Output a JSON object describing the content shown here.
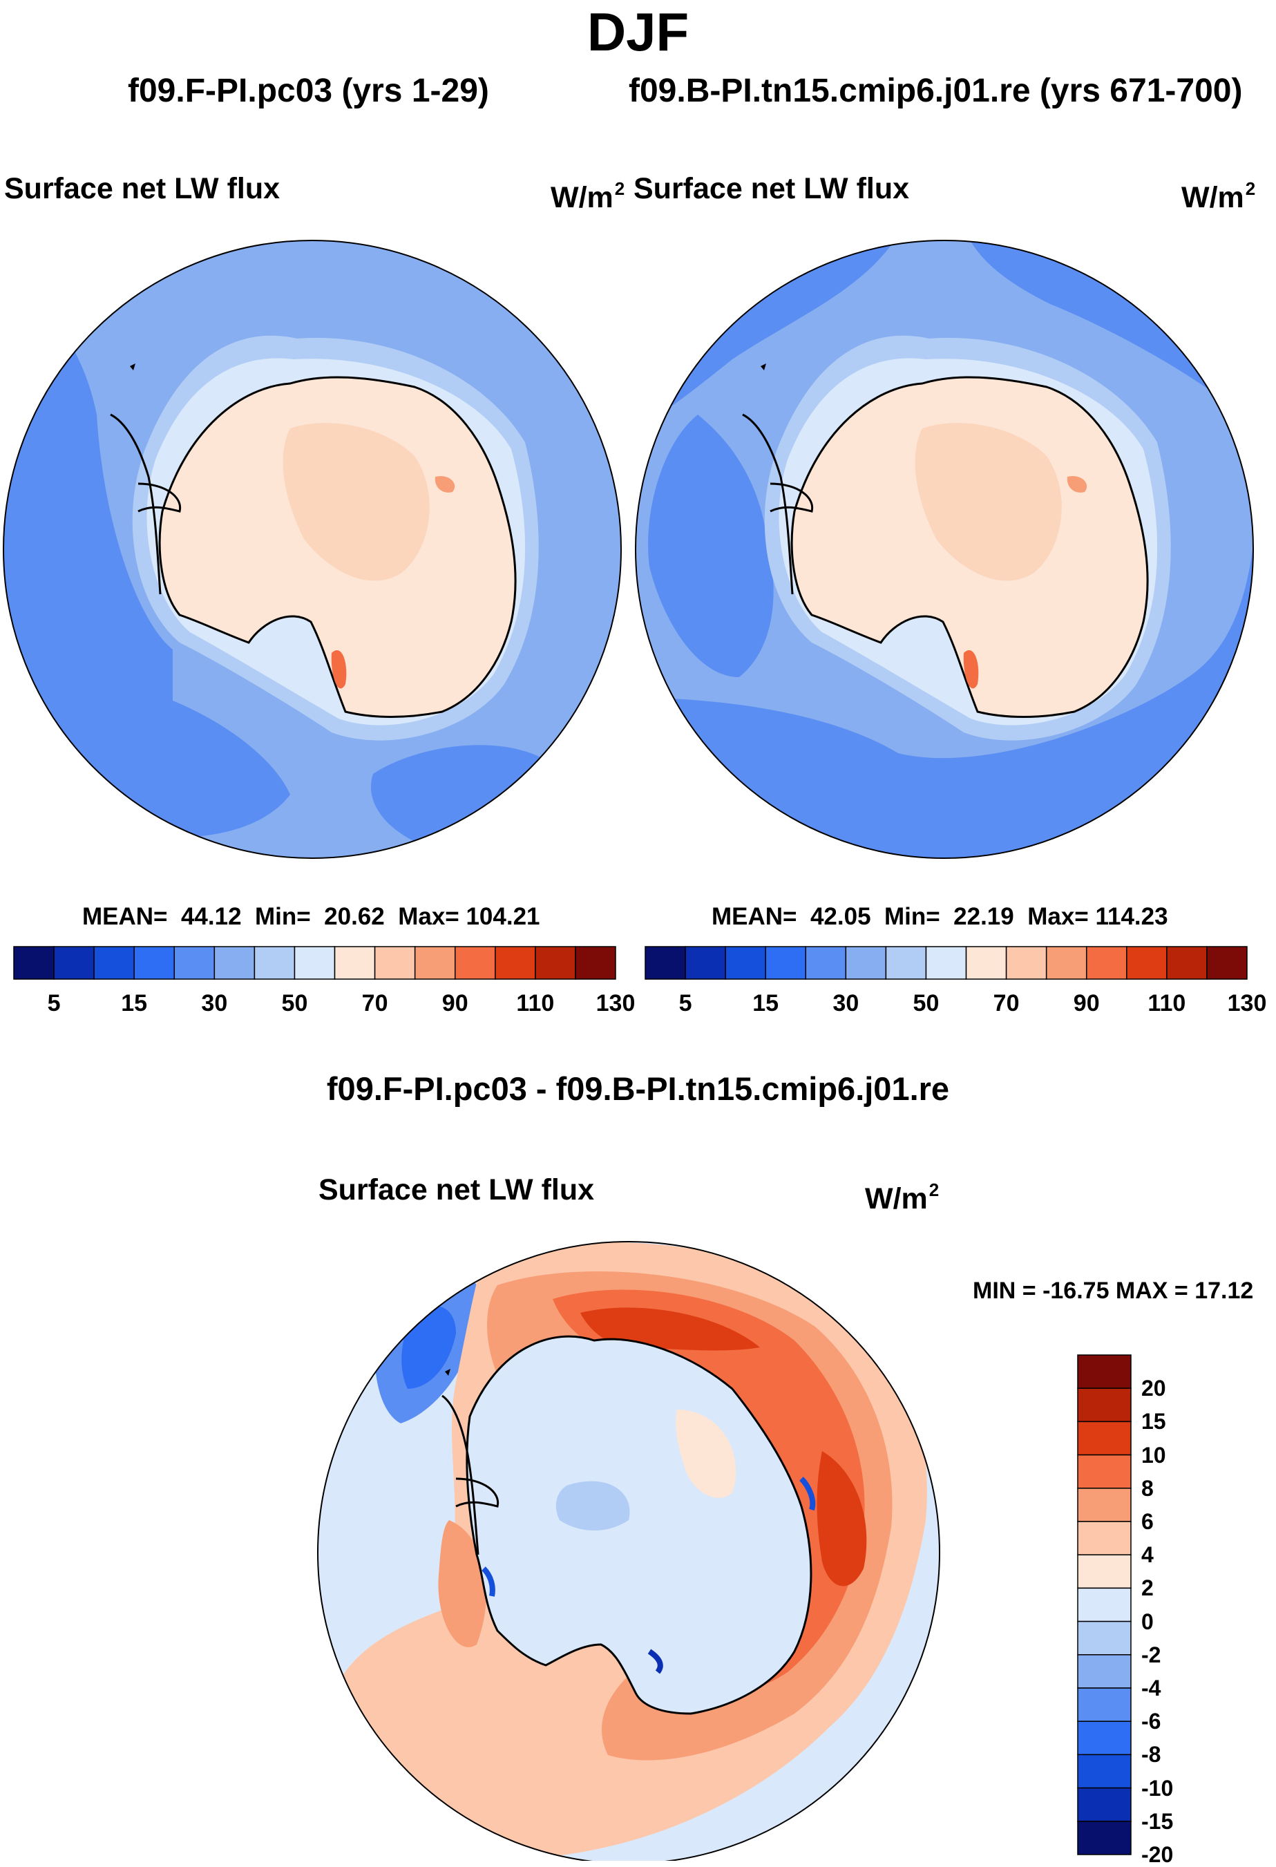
{
  "header": {
    "season": "DJF",
    "left_run": "f09.F-PI.pc03 (yrs 1-29)",
    "right_run": "f09.B-PI.tn15.cmip6.j01.re (yrs 671-700)",
    "diff_title": "f09.F-PI.pc03 - f09.B-PI.tn15.cmip6.j01.re"
  },
  "panels": {
    "left": {
      "variable": "Surface net LW flux",
      "unit": "W/m",
      "unit_sup": "2",
      "stats": {
        "mean_label": "MEAN=",
        "mean": "44.12",
        "min_label": "Min=",
        "min": "20.62",
        "max_label": "Max=",
        "max": "104.21"
      }
    },
    "right": {
      "variable": "Surface net LW flux",
      "unit": "W/m",
      "unit_sup": "2",
      "stats": {
        "mean_label": "MEAN=",
        "mean": "42.05",
        "min_label": "Min=",
        "min": "22.19",
        "max_label": "Max=",
        "max": "114.23"
      }
    },
    "diff": {
      "variable": "Surface net LW flux",
      "unit": "W/m",
      "unit_sup": "2",
      "minmax": "MIN = -16.75 MAX =  17.12"
    }
  },
  "chart_data": [
    {
      "type": "heatmap",
      "title": "Surface net LW flux",
      "projection": "south-polar-stereographic",
      "units": "W/m2",
      "colorbar_levels": [
        5,
        10,
        15,
        20,
        30,
        40,
        50,
        60,
        70,
        80,
        90,
        100,
        110,
        120,
        130
      ],
      "colorbar_tick_labels": [
        "5",
        "15",
        "30",
        "50",
        "70",
        "90",
        "110",
        "130"
      ],
      "colors": [
        "#08106e",
        "#0a2fb3",
        "#1450dc",
        "#2d6ef5",
        "#5b8ef2",
        "#86aef0",
        "#b2cdf5",
        "#d9e9fb",
        "#fde6d6",
        "#fcc7aa",
        "#f89e76",
        "#f36c42",
        "#de3d13",
        "#b82408",
        "#7c0a06"
      ],
      "mean": 44.12,
      "min": 20.62,
      "max": 104.21
    },
    {
      "type": "heatmap",
      "title": "Surface net LW flux",
      "projection": "south-polar-stereographic",
      "units": "W/m2",
      "colorbar_levels": [
        5,
        10,
        15,
        20,
        30,
        40,
        50,
        60,
        70,
        80,
        90,
        100,
        110,
        120,
        130
      ],
      "colorbar_tick_labels": [
        "5",
        "15",
        "30",
        "50",
        "70",
        "90",
        "110",
        "130"
      ],
      "colors": [
        "#08106e",
        "#0a2fb3",
        "#1450dc",
        "#2d6ef5",
        "#5b8ef2",
        "#86aef0",
        "#b2cdf5",
        "#d9e9fb",
        "#fde6d6",
        "#fcc7aa",
        "#f89e76",
        "#f36c42",
        "#de3d13",
        "#b82408",
        "#7c0a06"
      ],
      "mean": 42.05,
      "min": 22.19,
      "max": 114.23
    },
    {
      "type": "heatmap",
      "title": "Surface net LW flux",
      "subtitle": "f09.F-PI.pc03 - f09.B-PI.tn15.cmip6.j01.re",
      "projection": "south-polar-stereographic",
      "units": "W/m2",
      "colorbar_tick_labels": [
        "20",
        "15",
        "10",
        "8",
        "6",
        "4",
        "2",
        "0",
        "-2",
        "-4",
        "-6",
        "-8",
        "-10",
        "-15",
        "-20"
      ],
      "colors_top_to_bottom": [
        "#7c0a06",
        "#b82408",
        "#de3d13",
        "#f36c42",
        "#f89e76",
        "#fcc7aa",
        "#fde6d6",
        "#d9e9fb",
        "#b2cdf5",
        "#86aef0",
        "#5b8ef2",
        "#2d6ef5",
        "#1450dc",
        "#0a2fb3",
        "#08106e"
      ],
      "min": -16.75,
      "max": 17.12
    }
  ]
}
